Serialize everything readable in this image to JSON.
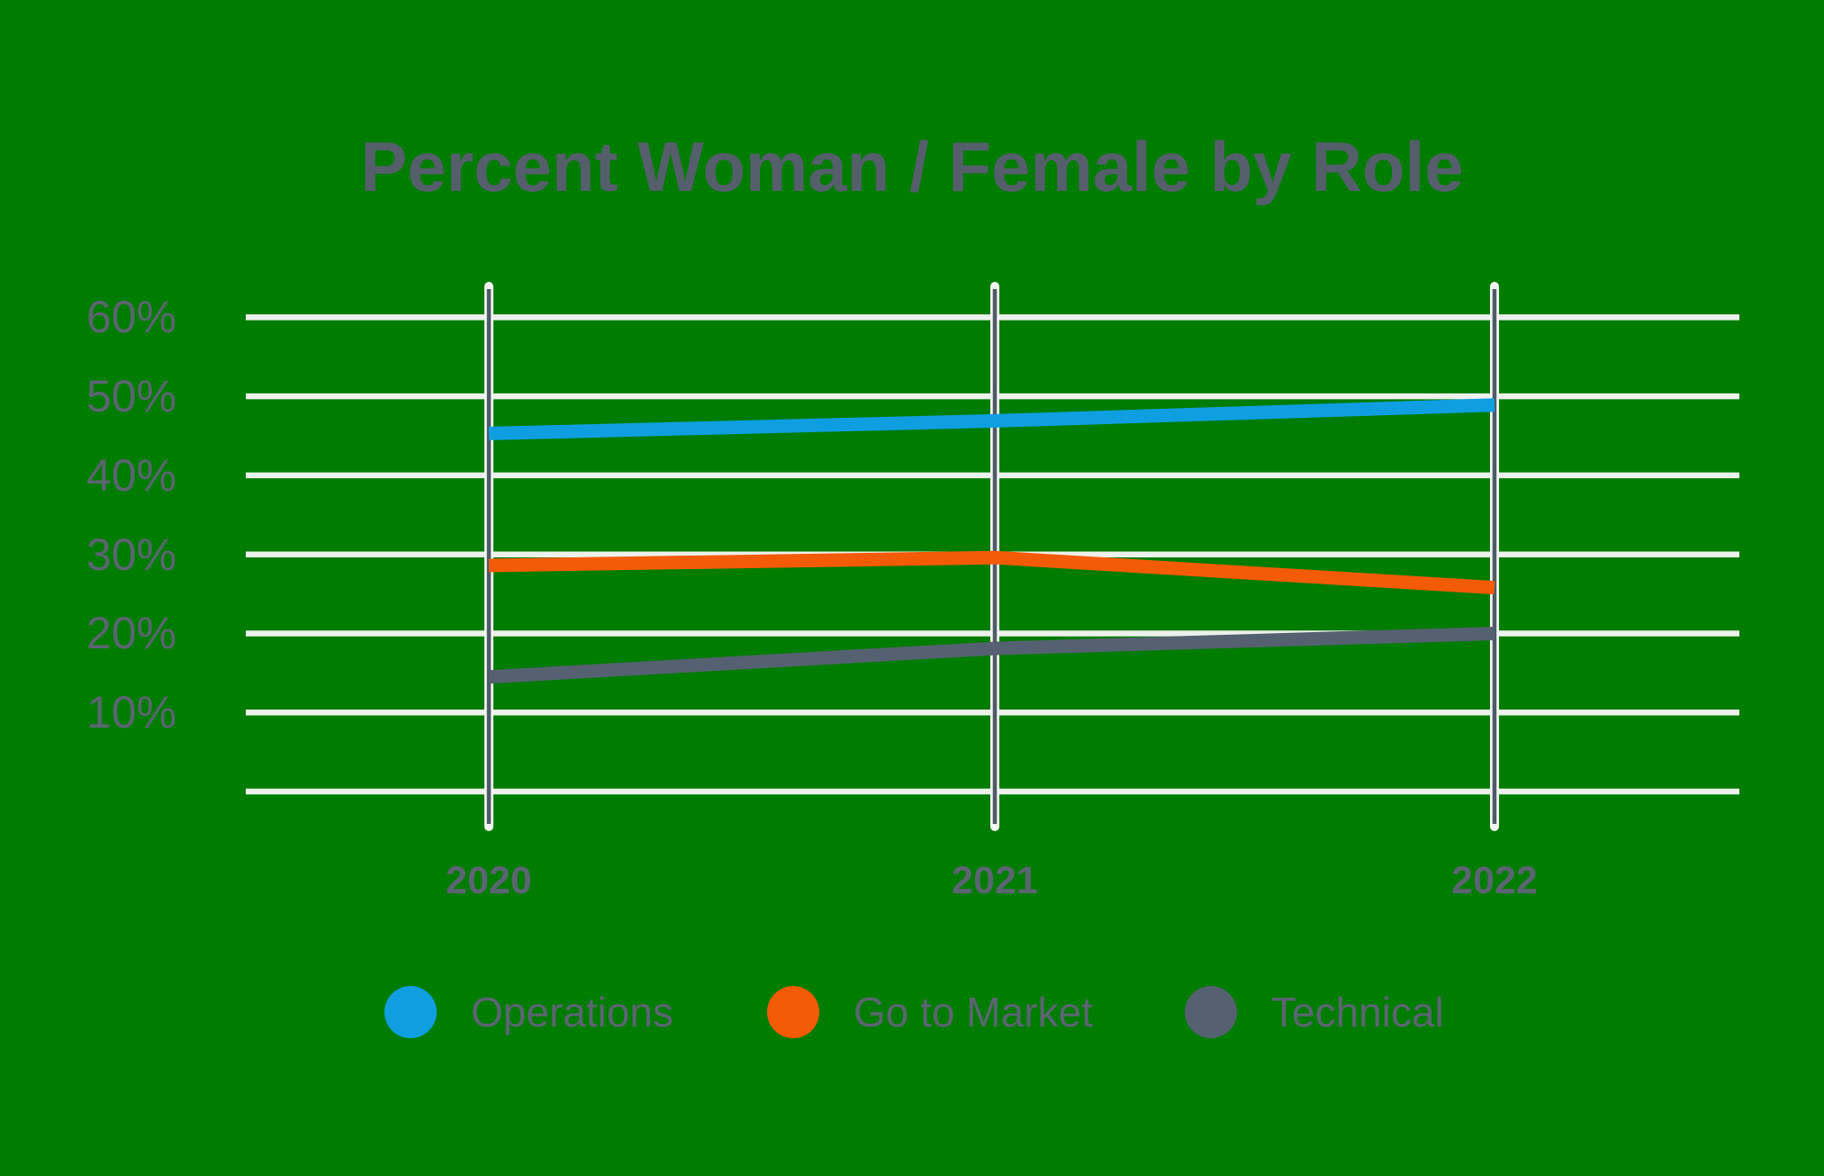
{
  "chart_data": {
    "type": "line",
    "title": "Percent Woman / Female by Role",
    "categories": [
      "2020",
      "2021",
      "2022"
    ],
    "series": [
      {
        "name": "Operations",
        "color": "#0f9fe1",
        "values": [
          45.3,
          46.9,
          48.9
        ]
      },
      {
        "name": "Go to Market",
        "color": "#f45b07",
        "values": [
          28.6,
          29.6,
          25.8
        ]
      },
      {
        "name": "Technical",
        "color": "#556170",
        "values": [
          14.5,
          18.1,
          20.0
        ]
      }
    ],
    "yticks": [
      "60%",
      "50%",
      "40%",
      "30%",
      "20%",
      "10%"
    ],
    "ytick_values": [
      60,
      50,
      40,
      30,
      20,
      10
    ],
    "ylim": [
      0,
      60
    ],
    "grid": "horizontal",
    "x_marker_lines": true,
    "legend_position": "bottom"
  },
  "colors": {
    "background": "#007c00",
    "text": "#5b6571",
    "title_text": "#555f6b",
    "gridline": "#edf1ec",
    "marker_outline": "#f3f6f3",
    "marker_core": "#4e5a67"
  }
}
